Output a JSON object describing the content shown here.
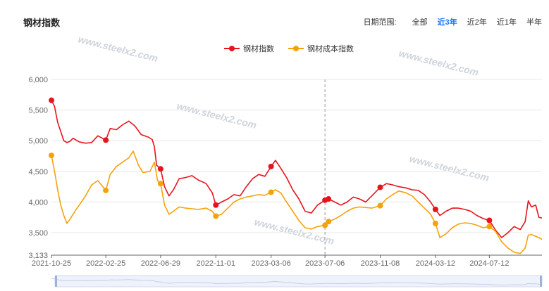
{
  "header": {
    "title": "钢材指数",
    "range_label": "日期范围:",
    "range_options": [
      {
        "label": "全部",
        "active": false
      },
      {
        "label": "近3年",
        "active": true
      },
      {
        "label": "近2年",
        "active": false
      },
      {
        "label": "近1年",
        "active": false
      },
      {
        "label": "半年",
        "active": false
      }
    ]
  },
  "watermark": "www.steelx2.com",
  "chart_data": {
    "type": "line",
    "title": "",
    "xlabel": "",
    "ylabel": "",
    "x_start": "2021-10-25",
    "x_end": "2024-11-08",
    "x_tick_labels": [
      "2021-10-25",
      "2022-02-25",
      "2022-06-29",
      "2022-11-01",
      "2023-03-06",
      "2023-07-06",
      "2023-11-08",
      "2024-03-12",
      "2024-07-12"
    ],
    "y_tick_labels": [
      "3,133",
      "3,500",
      "4,000",
      "4,500",
      "5,000",
      "5,500",
      "6,000"
    ],
    "ylim": [
      3133,
      6000
    ],
    "grid": "horizontal",
    "legend_position": "top-center",
    "crosshair_x": "2023-07-06",
    "series": [
      {
        "name": "钢材指数",
        "color": "#e8131d",
        "points": [
          [
            "2021-10-25",
            5660
          ],
          [
            "2021-11-01",
            5560
          ],
          [
            "2021-11-08",
            5300
          ],
          [
            "2021-11-15",
            5150
          ],
          [
            "2021-11-22",
            5000
          ],
          [
            "2021-11-29",
            4970
          ],
          [
            "2021-12-06",
            4990
          ],
          [
            "2021-12-13",
            5040
          ],
          [
            "2021-12-20",
            5010
          ],
          [
            "2021-12-27",
            4980
          ],
          [
            "2022-01-10",
            4960
          ],
          [
            "2022-01-24",
            4970
          ],
          [
            "2022-02-07",
            5080
          ],
          [
            "2022-02-25",
            5010
          ],
          [
            "2022-03-07",
            5200
          ],
          [
            "2022-03-21",
            5180
          ],
          [
            "2022-04-04",
            5260
          ],
          [
            "2022-04-18",
            5320
          ],
          [
            "2022-05-02",
            5240
          ],
          [
            "2022-05-16",
            5100
          ],
          [
            "2022-06-01",
            5060
          ],
          [
            "2022-06-10",
            5020
          ],
          [
            "2022-06-15",
            4900
          ],
          [
            "2022-06-20",
            4600
          ],
          [
            "2022-06-29",
            4540
          ],
          [
            "2022-07-08",
            4250
          ],
          [
            "2022-07-18",
            4100
          ],
          [
            "2022-07-28",
            4200
          ],
          [
            "2022-08-10",
            4380
          ],
          [
            "2022-08-25",
            4400
          ],
          [
            "2022-09-08",
            4430
          ],
          [
            "2022-09-22",
            4360
          ],
          [
            "2022-10-10",
            4300
          ],
          [
            "2022-10-24",
            4150
          ],
          [
            "2022-11-01",
            3950
          ],
          [
            "2022-11-14",
            4000
          ],
          [
            "2022-11-28",
            4050
          ],
          [
            "2022-12-12",
            4120
          ],
          [
            "2022-12-26",
            4100
          ],
          [
            "2023-01-09",
            4250
          ],
          [
            "2023-01-23",
            4380
          ],
          [
            "2023-02-06",
            4450
          ],
          [
            "2023-02-20",
            4420
          ],
          [
            "2023-03-06",
            4580
          ],
          [
            "2023-03-16",
            4680
          ],
          [
            "2023-03-28",
            4550
          ],
          [
            "2023-04-10",
            4400
          ],
          [
            "2023-04-24",
            4200
          ],
          [
            "2023-05-08",
            4050
          ],
          [
            "2023-05-22",
            3850
          ],
          [
            "2023-06-05",
            3820
          ],
          [
            "2023-06-19",
            3950
          ],
          [
            "2023-07-06",
            4030
          ],
          [
            "2023-07-14",
            4050
          ],
          [
            "2023-07-28",
            4000
          ],
          [
            "2023-08-11",
            3950
          ],
          [
            "2023-08-25",
            4000
          ],
          [
            "2023-09-08",
            4080
          ],
          [
            "2023-09-22",
            4050
          ],
          [
            "2023-10-06",
            4000
          ],
          [
            "2023-10-20",
            4100
          ],
          [
            "2023-11-08",
            4240
          ],
          [
            "2023-11-22",
            4300
          ],
          [
            "2023-12-06",
            4280
          ],
          [
            "2023-12-20",
            4250
          ],
          [
            "2024-01-05",
            4230
          ],
          [
            "2024-01-19",
            4200
          ],
          [
            "2024-02-02",
            4190
          ],
          [
            "2024-02-16",
            4120
          ],
          [
            "2024-03-01",
            4000
          ],
          [
            "2024-03-12",
            3880
          ],
          [
            "2024-03-22",
            3780
          ],
          [
            "2024-04-05",
            3850
          ],
          [
            "2024-04-19",
            3900
          ],
          [
            "2024-05-03",
            3900
          ],
          [
            "2024-05-17",
            3880
          ],
          [
            "2024-05-31",
            3850
          ],
          [
            "2024-06-14",
            3780
          ],
          [
            "2024-06-28",
            3730
          ],
          [
            "2024-07-12",
            3700
          ],
          [
            "2024-07-26",
            3540
          ],
          [
            "2024-08-09",
            3420
          ],
          [
            "2024-08-23",
            3500
          ],
          [
            "2024-09-06",
            3600
          ],
          [
            "2024-09-20",
            3550
          ],
          [
            "2024-10-01",
            3680
          ],
          [
            "2024-10-08",
            4020
          ],
          [
            "2024-10-15",
            3920
          ],
          [
            "2024-10-25",
            3950
          ],
          [
            "2024-11-01",
            3750
          ],
          [
            "2024-11-08",
            3740
          ]
        ],
        "markers": [
          [
            "2021-10-25",
            5660
          ],
          [
            "2022-02-25",
            5010
          ],
          [
            "2022-06-29",
            4540
          ],
          [
            "2022-11-01",
            3950
          ],
          [
            "2023-03-06",
            4580
          ],
          [
            "2023-07-06",
            4030
          ],
          [
            "2023-07-14",
            4050
          ],
          [
            "2023-11-08",
            4240
          ],
          [
            "2024-03-12",
            3880
          ],
          [
            "2024-07-12",
            3700
          ]
        ]
      },
      {
        "name": "钢材成本指数",
        "color": "#f5a20a",
        "points": [
          [
            "2021-10-25",
            4760
          ],
          [
            "2021-11-01",
            4500
          ],
          [
            "2021-11-08",
            4200
          ],
          [
            "2021-11-15",
            3950
          ],
          [
            "2021-11-22",
            3780
          ],
          [
            "2021-11-29",
            3650
          ],
          [
            "2021-12-06",
            3720
          ],
          [
            "2021-12-13",
            3800
          ],
          [
            "2021-12-20",
            3880
          ],
          [
            "2021-12-27",
            3950
          ],
          [
            "2022-01-10",
            4100
          ],
          [
            "2022-01-24",
            4280
          ],
          [
            "2022-02-07",
            4350
          ],
          [
            "2022-02-25",
            4190
          ],
          [
            "2022-03-07",
            4450
          ],
          [
            "2022-03-21",
            4580
          ],
          [
            "2022-04-04",
            4650
          ],
          [
            "2022-04-18",
            4720
          ],
          [
            "2022-04-28",
            4830
          ],
          [
            "2022-05-10",
            4600
          ],
          [
            "2022-05-20",
            4480
          ],
          [
            "2022-06-05",
            4500
          ],
          [
            "2022-06-15",
            4650
          ],
          [
            "2022-06-22",
            4350
          ],
          [
            "2022-06-29",
            4300
          ],
          [
            "2022-07-08",
            3950
          ],
          [
            "2022-07-18",
            3800
          ],
          [
            "2022-07-28",
            3850
          ],
          [
            "2022-08-10",
            3920
          ],
          [
            "2022-08-25",
            3900
          ],
          [
            "2022-09-08",
            3890
          ],
          [
            "2022-09-22",
            3880
          ],
          [
            "2022-10-10",
            3900
          ],
          [
            "2022-10-24",
            3850
          ],
          [
            "2022-11-01",
            3770
          ],
          [
            "2022-11-14",
            3800
          ],
          [
            "2022-11-28",
            3900
          ],
          [
            "2022-12-12",
            4000
          ],
          [
            "2022-12-26",
            4050
          ],
          [
            "2023-01-09",
            4080
          ],
          [
            "2023-01-23",
            4100
          ],
          [
            "2023-02-06",
            4120
          ],
          [
            "2023-02-20",
            4110
          ],
          [
            "2023-03-06",
            4160
          ],
          [
            "2023-03-16",
            4200
          ],
          [
            "2023-03-28",
            4150
          ],
          [
            "2023-04-10",
            4000
          ],
          [
            "2023-04-24",
            3850
          ],
          [
            "2023-05-08",
            3700
          ],
          [
            "2023-05-22",
            3580
          ],
          [
            "2023-06-05",
            3560
          ],
          [
            "2023-06-19",
            3600
          ],
          [
            "2023-07-06",
            3620
          ],
          [
            "2023-07-14",
            3680
          ],
          [
            "2023-07-28",
            3720
          ],
          [
            "2023-08-11",
            3780
          ],
          [
            "2023-08-25",
            3850
          ],
          [
            "2023-09-08",
            3900
          ],
          [
            "2023-09-22",
            3920
          ],
          [
            "2023-10-06",
            3910
          ],
          [
            "2023-10-20",
            3900
          ],
          [
            "2023-11-08",
            3940
          ],
          [
            "2023-11-22",
            4050
          ],
          [
            "2023-12-06",
            4120
          ],
          [
            "2023-12-20",
            4180
          ],
          [
            "2024-01-05",
            4150
          ],
          [
            "2024-01-19",
            4100
          ],
          [
            "2024-02-02",
            4000
          ],
          [
            "2024-02-16",
            3900
          ],
          [
            "2024-03-01",
            3800
          ],
          [
            "2024-03-12",
            3650
          ],
          [
            "2024-03-22",
            3420
          ],
          [
            "2024-04-05",
            3480
          ],
          [
            "2024-04-19",
            3580
          ],
          [
            "2024-05-03",
            3640
          ],
          [
            "2024-05-17",
            3660
          ],
          [
            "2024-05-31",
            3650
          ],
          [
            "2024-06-14",
            3620
          ],
          [
            "2024-06-28",
            3580
          ],
          [
            "2024-07-12",
            3600
          ],
          [
            "2024-07-26",
            3520
          ],
          [
            "2024-08-09",
            3350
          ],
          [
            "2024-08-23",
            3250
          ],
          [
            "2024-09-06",
            3180
          ],
          [
            "2024-09-20",
            3160
          ],
          [
            "2024-10-01",
            3250
          ],
          [
            "2024-10-08",
            3460
          ],
          [
            "2024-10-15",
            3470
          ],
          [
            "2024-10-25",
            3440
          ],
          [
            "2024-11-01",
            3420
          ],
          [
            "2024-11-08",
            3390
          ]
        ],
        "markers": [
          [
            "2021-10-25",
            4760
          ],
          [
            "2022-02-25",
            4190
          ],
          [
            "2022-06-29",
            4300
          ],
          [
            "2022-11-01",
            3770
          ],
          [
            "2023-03-06",
            4160
          ],
          [
            "2023-07-06",
            3620
          ],
          [
            "2023-07-14",
            3680
          ],
          [
            "2023-11-08",
            3940
          ],
          [
            "2024-03-12",
            3650
          ],
          [
            "2024-07-12",
            3600
          ]
        ]
      }
    ]
  }
}
